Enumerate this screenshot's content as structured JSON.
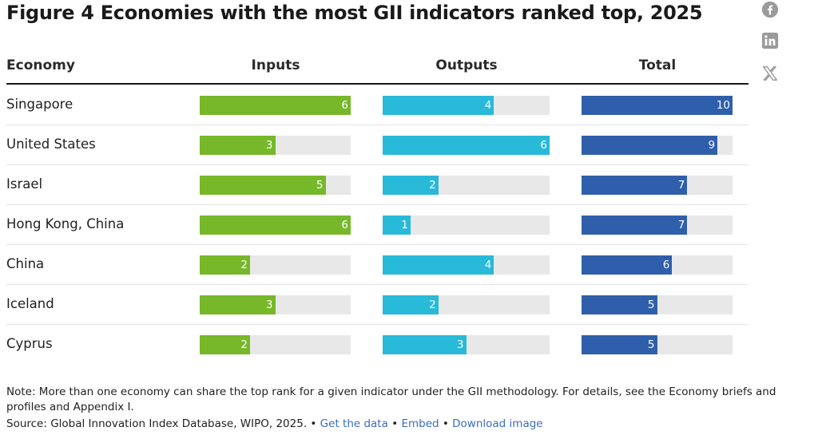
{
  "title": "Figure 4 Economies with the most GII indicators ranked top, 2025",
  "share": {
    "facebook_icon": "facebook-icon",
    "linkedin_icon": "linkedin-icon",
    "x_icon": "x-icon"
  },
  "columns": {
    "economy": "Economy",
    "inputs": "Inputs",
    "outputs": "Outputs",
    "total": "Total"
  },
  "colors": {
    "inputs": "#76b82a",
    "outputs": "#29b9d9",
    "total": "#2f5faa",
    "track": "#e8e8e8"
  },
  "chart_data": {
    "type": "bar",
    "categories": [
      "Singapore",
      "United States",
      "Israel",
      "Hong Kong, China",
      "China",
      "Iceland",
      "Cyprus"
    ],
    "series": [
      {
        "name": "Inputs",
        "values": [
          6,
          3,
          5,
          6,
          2,
          3,
          2
        ],
        "max": 6
      },
      {
        "name": "Outputs",
        "values": [
          4,
          6,
          2,
          1,
          4,
          2,
          3
        ],
        "max": 6
      },
      {
        "name": "Total",
        "values": [
          10,
          9,
          7,
          7,
          6,
          5,
          5
        ],
        "max": 10
      }
    ]
  },
  "note": "Note: More than one economy can share the top rank for a given indicator under the GII methodology. For details, see the Economy briefs and profiles and Appendix I.",
  "source": {
    "text": "Source: Global Innovation Index Database, WIPO, 2025. •",
    "get_data": "Get the data",
    "embed": "Embed",
    "download": "Download image",
    "bullet": "•"
  }
}
